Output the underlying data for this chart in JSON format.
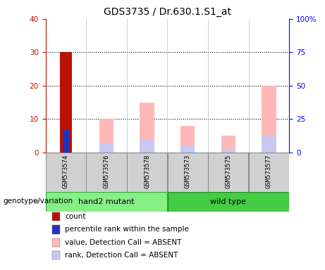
{
  "title": "GDS3735 / Dr.630.1.S1_at",
  "samples": [
    "GSM573574",
    "GSM573576",
    "GSM573578",
    "GSM573573",
    "GSM573575",
    "GSM573577"
  ],
  "count_values": [
    30,
    0,
    0,
    0,
    0,
    0
  ],
  "percentile_values": [
    7,
    0,
    0,
    0,
    0,
    0
  ],
  "value_absent": [
    0,
    10,
    15,
    8,
    5,
    20
  ],
  "rank_absent": [
    0,
    3,
    4,
    2,
    1,
    5
  ],
  "left_ylim": [
    0,
    40
  ],
  "right_ylim": [
    0,
    100
  ],
  "left_yticks": [
    0,
    10,
    20,
    30,
    40
  ],
  "right_yticks": [
    0,
    25,
    50,
    75,
    100
  ],
  "right_yticklabels": [
    "0",
    "25",
    "50",
    "75",
    "100%"
  ],
  "count_color": "#bb1100",
  "percentile_color": "#2233bb",
  "value_absent_color": "#ffb8b8",
  "rank_absent_color": "#c8c8f0",
  "bar_width": 0.32,
  "legend_items": [
    {
      "label": "count",
      "color": "#bb1100"
    },
    {
      "label": "percentile rank within the sample",
      "color": "#2233bb"
    },
    {
      "label": "value, Detection Call = ABSENT",
      "color": "#ffb8b8"
    },
    {
      "label": "rank, Detection Call = ABSENT",
      "color": "#c8c8f0"
    }
  ],
  "genotype_label": "genotype/variation",
  "hand2_color": "#88ee88",
  "wildtype_color": "#44cc44",
  "sample_box_color": "#cccccc",
  "title_fontsize": 10,
  "tick_fontsize": 7.5,
  "legend_fontsize": 7.5
}
